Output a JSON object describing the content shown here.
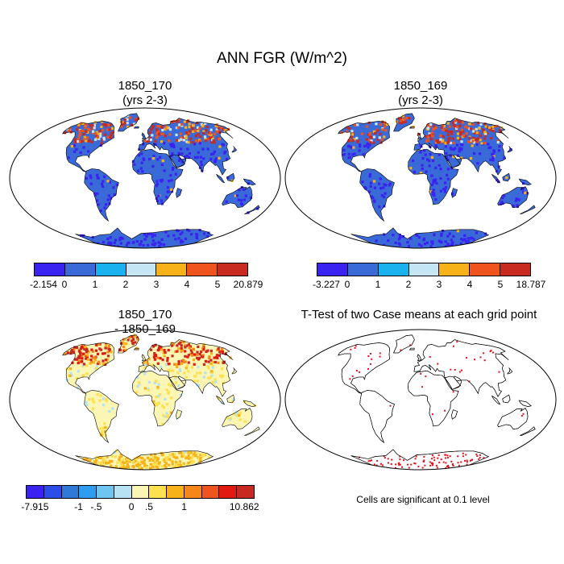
{
  "title": "ANN FGR (W/m^2)",
  "panels": [
    {
      "title_line1": "1850_170",
      "title_line2": "(yrs 2-3)"
    },
    {
      "title_line1": "1850_169",
      "title_line2": "(yrs 2-3)"
    },
    {
      "title_line1": "1850_170",
      "title_line2": "- 1850_169"
    },
    {
      "title_line1": "T-Test of two Case means at each grid point",
      "title_line2": ""
    }
  ],
  "colorbars": [
    {
      "colors": [
        "#3a22f0",
        "#3a6ad8",
        "#1ab2ee",
        "#c4e6f4",
        "#f7b21a",
        "#f0541e",
        "#c82a22"
      ],
      "labels": [
        "-2.154",
        "0",
        "1",
        "2",
        "3",
        "4",
        "5",
        "20.879"
      ]
    },
    {
      "colors": [
        "#3a22f0",
        "#3a6ad8",
        "#1ab2ee",
        "#c4e6f4",
        "#f7b21a",
        "#f0541e",
        "#c82a22"
      ],
      "labels": [
        "-3.227",
        "0",
        "1",
        "2",
        "3",
        "4",
        "5",
        "18.787"
      ]
    },
    {
      "colors": [
        "#3a22f0",
        "#2b4ee8",
        "#2f7ad8",
        "#2e9cf0",
        "#6ec6f0",
        "#b6e2f4",
        "#fbf6b4",
        "#fce050",
        "#f7b21a",
        "#f7861a",
        "#f0541e",
        "#e01a10",
        "#c82a22"
      ],
      "labels": [
        "-7.915",
        "-1",
        "-.5",
        "0",
        ".5",
        "1",
        "10.862"
      ]
    }
  ],
  "significance_note": "Cells are significant at 0.1 level"
}
